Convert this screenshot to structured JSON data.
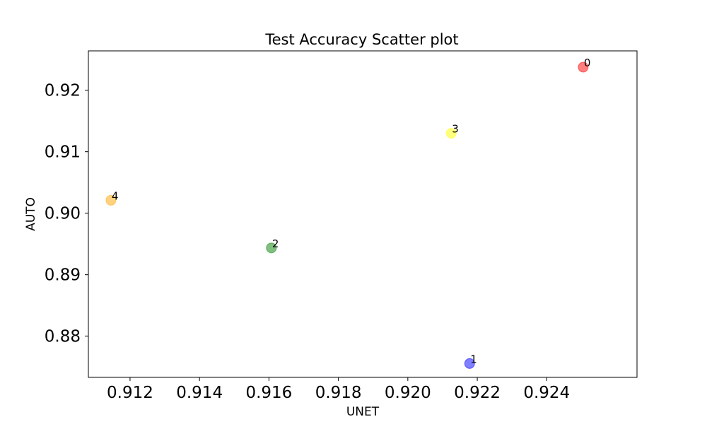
{
  "chart_data": {
    "type": "scatter",
    "title": "Test Accuracy Scatter plot",
    "xlabel": "UNET",
    "ylabel": "AUTO",
    "xlim": [
      0.9108,
      0.9266
    ],
    "ylim": [
      0.8733,
      0.9264
    ],
    "xticks": [
      0.912,
      0.914,
      0.916,
      0.918,
      0.92,
      0.922,
      0.924
    ],
    "xtick_labels": [
      "0.912",
      "0.914",
      "0.916",
      "0.918",
      "0.920",
      "0.922",
      "0.924"
    ],
    "yticks": [
      0.88,
      0.89,
      0.9,
      0.91,
      0.92
    ],
    "ytick_labels": [
      "0.88",
      "0.89",
      "0.90",
      "0.91",
      "0.92"
    ],
    "grid": false,
    "points": [
      {
        "label": "0",
        "x": 0.92505,
        "y": 0.92375,
        "color": "#ff0000"
      },
      {
        "label": "1",
        "x": 0.92178,
        "y": 0.87555,
        "color": "#0000ff"
      },
      {
        "label": "2",
        "x": 0.91607,
        "y": 0.89435,
        "color": "#008000"
      },
      {
        "label": "3",
        "x": 0.92125,
        "y": 0.913,
        "color": "#ffff00"
      },
      {
        "label": "4",
        "x": 0.91145,
        "y": 0.9021,
        "color": "#ffa500"
      }
    ],
    "point_alpha": 0.5
  }
}
